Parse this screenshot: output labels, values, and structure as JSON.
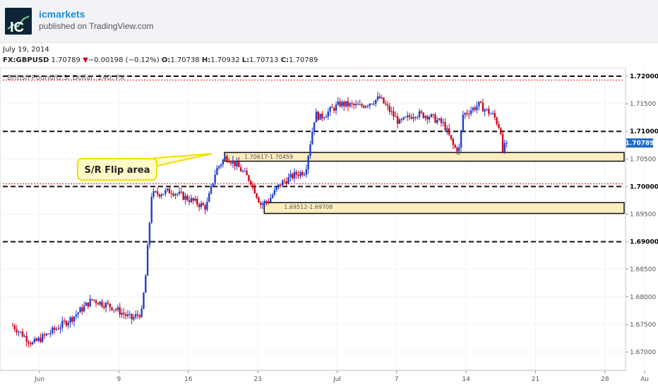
{
  "header": {
    "author": "icmarkets",
    "published": "published on TradingView.com",
    "logo_text": "IC"
  },
  "info": {
    "date": "July 19, 2014",
    "symbol": "FX:GBPUSD",
    "last": "1.70789",
    "arrow": "▼",
    "change": "−0.00198 (−0.12%)",
    "o_label": "O:",
    "open": "1.70738",
    "h_label": "H:",
    "high": "1.70932",
    "l_label": "L:",
    "low": "1.70713",
    "c_label": "C:",
    "close": "1.70789"
  },
  "chart_data": {
    "type": "candlestick",
    "title": "British Pound/U.S. Dollar, 240, FX",
    "ylim": [
      1.6965,
      1.7218
    ],
    "y_ticks": [
      "1.72000",
      "1.71500",
      "1.71000",
      "1.70500",
      "1.70000",
      "1.69500",
      "1.69000",
      "1.68500",
      "1.68000",
      "1.67500",
      "1.67000"
    ],
    "x_ticks": [
      {
        "label": "Jun",
        "day": 0
      },
      {
        "label": "9",
        "day": 8
      },
      {
        "label": "16",
        "day": 15
      },
      {
        "label": "23",
        "day": 22
      },
      {
        "label": "Jul",
        "day": 30
      },
      {
        "label": "7",
        "day": 36
      },
      {
        "label": "14",
        "day": 43
      },
      {
        "label": "21",
        "day": 50
      },
      {
        "label": "28",
        "day": 57
      },
      {
        "label": "Au",
        "day": 61
      }
    ],
    "last_price_label": "1.70789",
    "levels_dashed": [
      1.72,
      1.71,
      1.7,
      1.69
    ],
    "levels_red_dotted": [
      1.7193,
      1.7005
    ],
    "zones": [
      {
        "label": "1.70617-1.70459",
        "top": 1.70617,
        "bottom": 1.70459,
        "start_day": 21
      },
      {
        "label": "1.69512-1.69708",
        "top": 1.69708,
        "bottom": 1.69512,
        "start_day": 25
      }
    ],
    "annotation": "S/R Flip area",
    "path_days": [
      0,
      2,
      4,
      6,
      8,
      10,
      12,
      13,
      13.4,
      14,
      16,
      18,
      19.5,
      20.5,
      21.5,
      22.5,
      24,
      25,
      25.8,
      27,
      28.5,
      29.5,
      30,
      30.5,
      31,
      33,
      35,
      37,
      39,
      40.5,
      42,
      43.5,
      44.5,
      45,
      45.4,
      47,
      48.5,
      49.2,
      49.4,
      49.8
    ],
    "path_prices": [
      1.6748,
      1.6715,
      1.6738,
      1.6762,
      1.6795,
      1.6782,
      1.676,
      1.6772,
      1.6838,
      1.6985,
      1.6992,
      1.6975,
      1.6962,
      1.703,
      1.7055,
      1.704,
      1.701,
      1.6968,
      1.6975,
      1.7005,
      1.7022,
      1.7028,
      1.708,
      1.7132,
      1.7125,
      1.715,
      1.7145,
      1.716,
      1.7115,
      1.7132,
      1.7128,
      1.7112,
      1.707,
      1.7068,
      1.713,
      1.7148,
      1.7128,
      1.7102,
      1.7055,
      1.7079
    ]
  }
}
